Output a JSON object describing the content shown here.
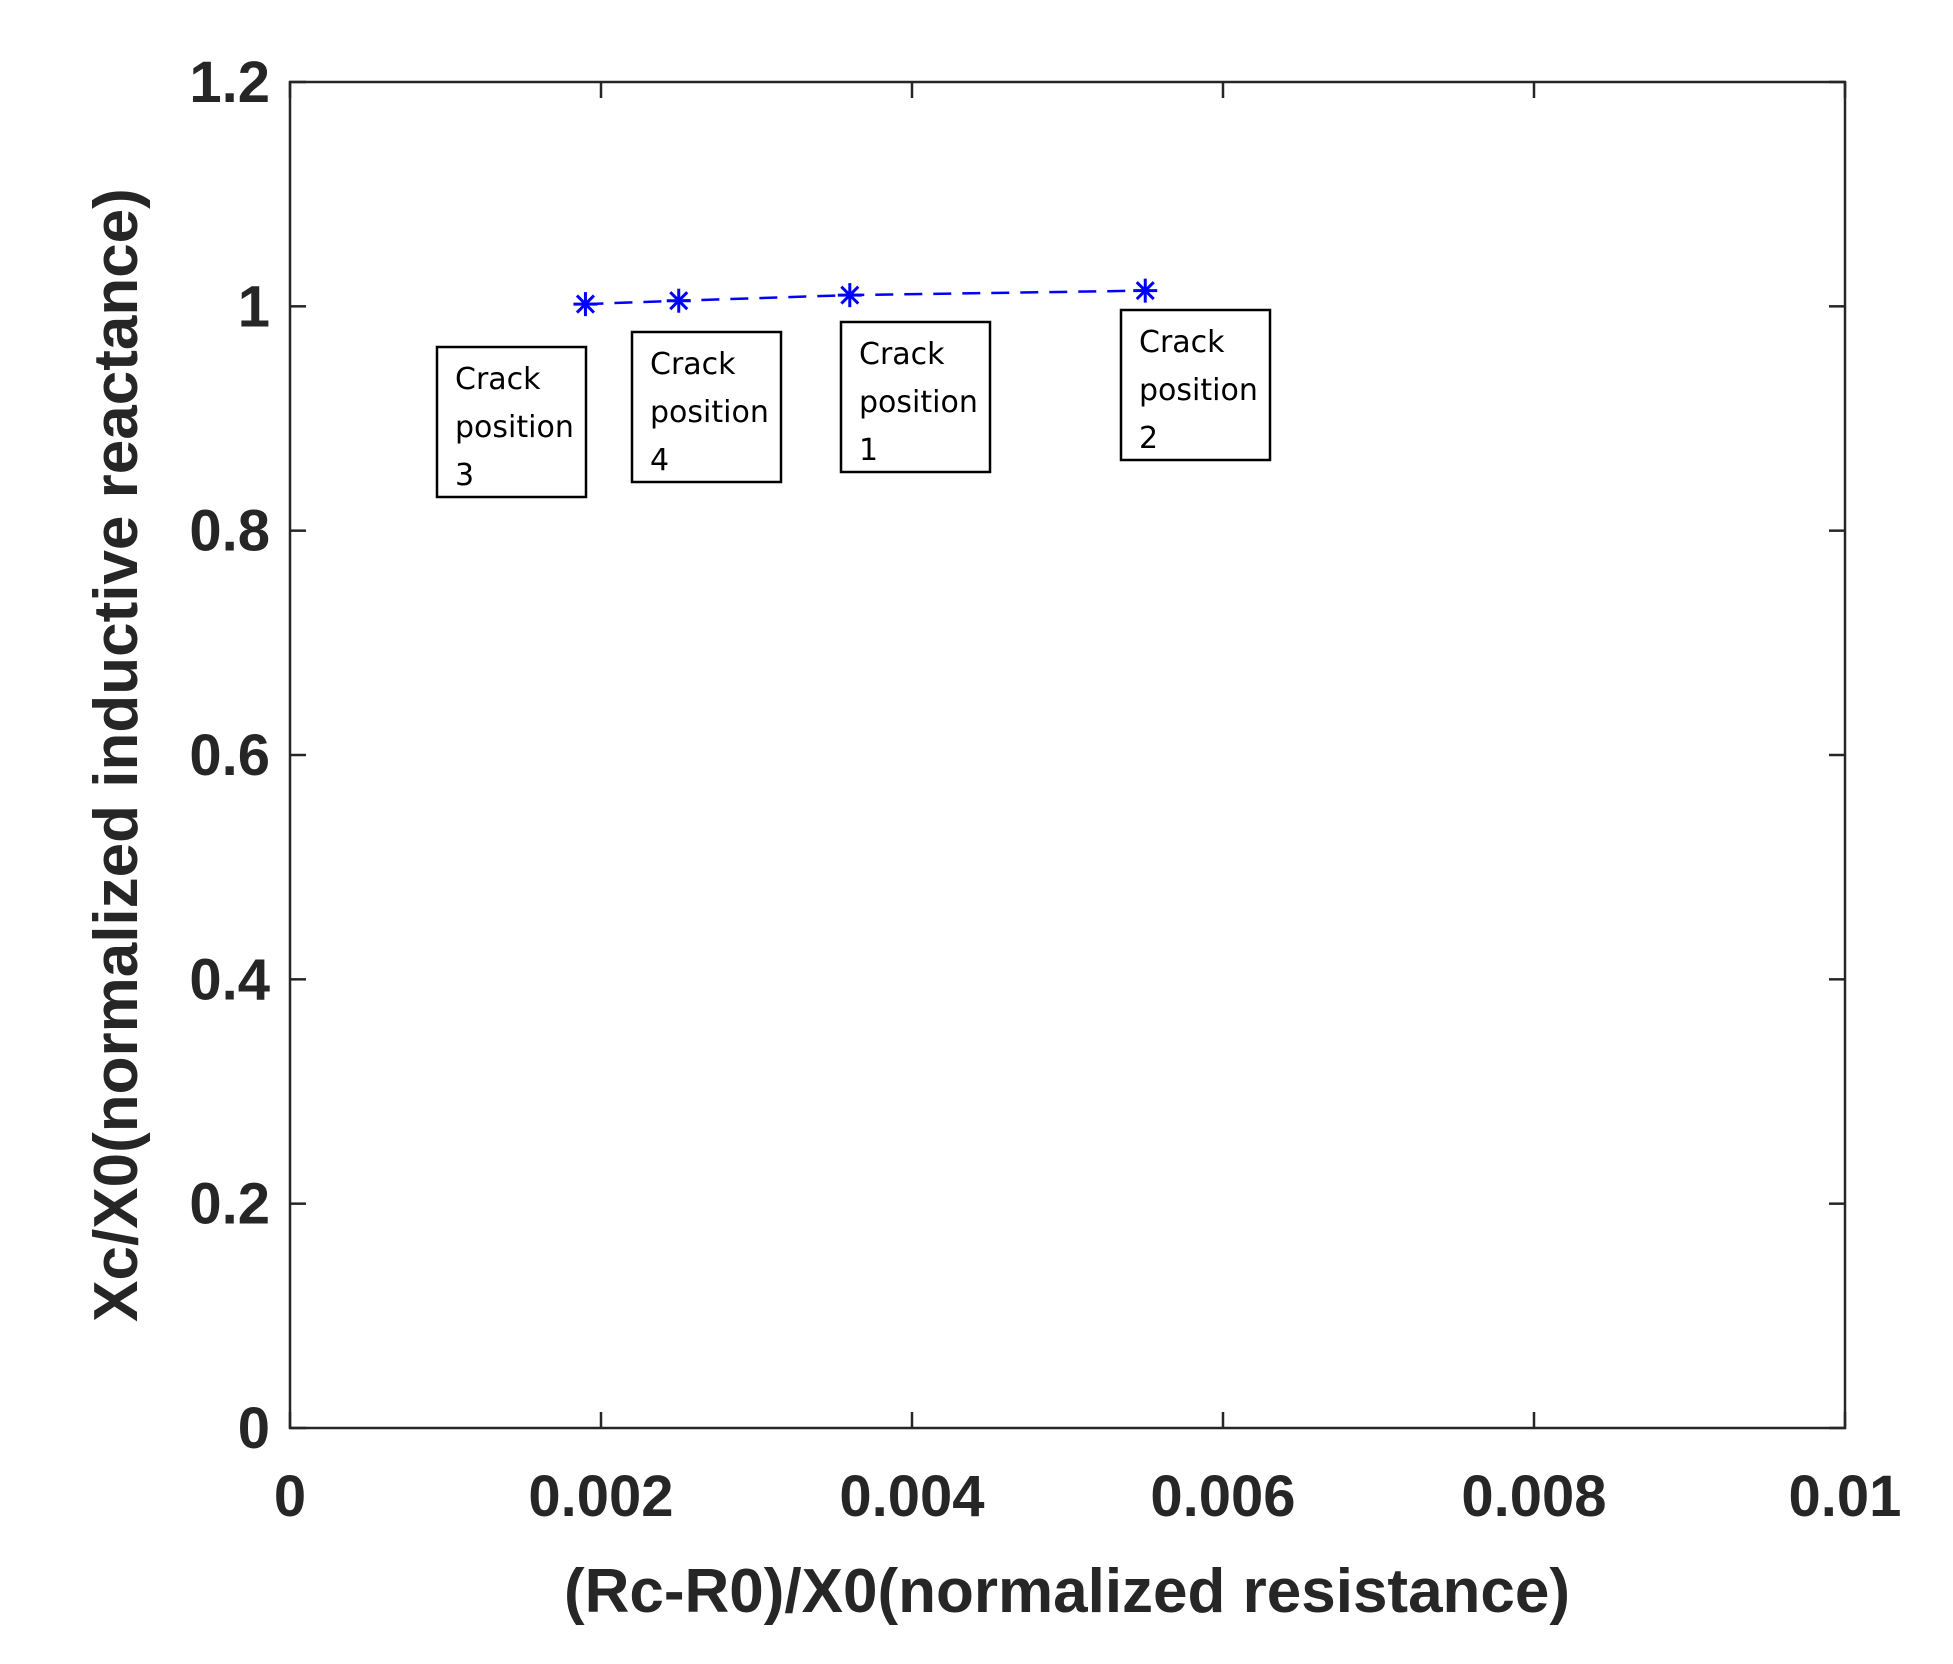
{
  "chart_data": {
    "type": "line",
    "title": "",
    "xlabel": "(Rc-R0)/X0(normalized resistance)",
    "ylabel": "Xc/X0(normalized inductive reactance)",
    "xlim": [
      0,
      0.01
    ],
    "ylim": [
      0,
      1.2
    ],
    "grid": false,
    "x_ticks": [
      "0",
      "0.002",
      "0.004",
      "0.006",
      "0.008",
      "0.01"
    ],
    "y_ticks": [
      "0",
      "0.2",
      "0.4",
      "0.6",
      "0.8",
      "1",
      "1.2"
    ],
    "series": [
      {
        "color": "#0000ff",
        "line_style": "dashed",
        "marker": "asterisk",
        "points": [
          {
            "x": 0.0019,
            "y": 1.002
          },
          {
            "x": 0.0025,
            "y": 1.005
          },
          {
            "x": 0.0036,
            "y": 1.01
          },
          {
            "x": 0.0055,
            "y": 1.014
          }
        ]
      }
    ],
    "annotations": [
      {
        "lines": [
          "Crack",
          "position",
          "3"
        ]
      },
      {
        "lines": [
          "Crack",
          "position",
          "4"
        ]
      },
      {
        "lines": [
          "Crack",
          "position",
          "1"
        ]
      },
      {
        "lines": [
          "Crack",
          "position",
          "2"
        ]
      }
    ]
  }
}
